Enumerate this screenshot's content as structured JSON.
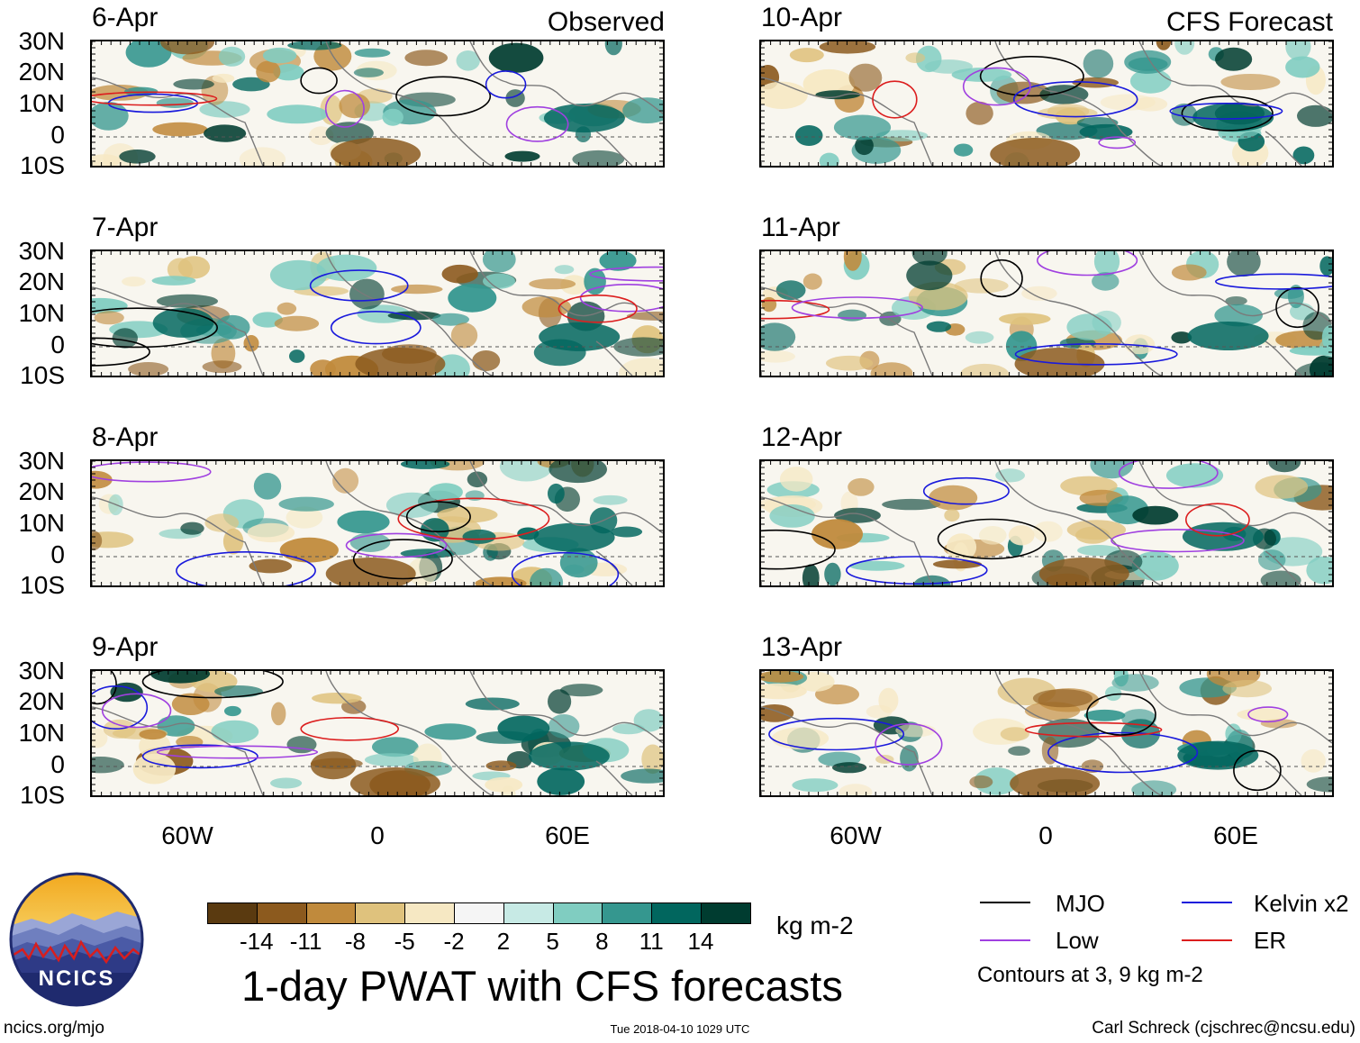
{
  "columns": [
    {
      "label": "Observed",
      "panels": [
        {
          "date": "6-Apr"
        },
        {
          "date": "7-Apr"
        },
        {
          "date": "8-Apr"
        },
        {
          "date": "9-Apr"
        }
      ]
    },
    {
      "label": "CFS Forecast",
      "panels": [
        {
          "date": "10-Apr"
        },
        {
          "date": "11-Apr"
        },
        {
          "date": "12-Apr"
        },
        {
          "date": "13-Apr"
        }
      ]
    }
  ],
  "lat_ticks": [
    "30N",
    "20N",
    "10N",
    "0",
    "10S"
  ],
  "lon_ticks": [
    "60W",
    "0",
    "60E"
  ],
  "colorbar": {
    "ticks": [
      "-14",
      "-11",
      "-8",
      "-5",
      "-2",
      "2",
      "5",
      "8",
      "11",
      "14"
    ],
    "colors": [
      "#5a3a10",
      "#8c5a1e",
      "#c08a3c",
      "#dfc27d",
      "#f6e8c3",
      "#f5f5f5",
      "#c7eae5",
      "#80cdc1",
      "#35978f",
      "#01665e",
      "#003c30"
    ],
    "units": "kg m-2"
  },
  "title": "1-day PWAT with CFS forecasts",
  "legend": {
    "items": [
      {
        "label": "MJO",
        "color": "#000000"
      },
      {
        "label": "Kelvin x2",
        "color": "#1a1adc"
      },
      {
        "label": "Low",
        "color": "#a040e0"
      },
      {
        "label": "ER",
        "color": "#dc1e1e"
      }
    ],
    "note": "Contours at 3, 9 kg m-2"
  },
  "logo": {
    "text": "NCICS"
  },
  "footer": {
    "left": "ncics.org/mjo",
    "center": "Tue 2018-04-10 1029 UTC",
    "right": "Carl Schreck (cjschrec@ncsu.edu)"
  }
}
